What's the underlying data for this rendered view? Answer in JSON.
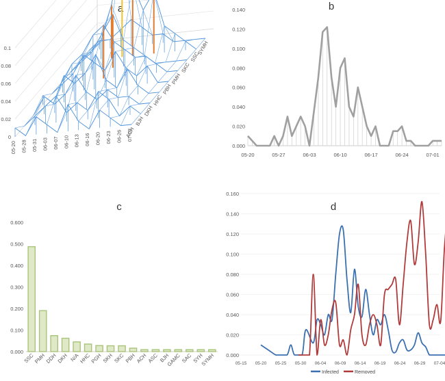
{
  "panels": {
    "a": {
      "label": "a"
    },
    "b": {
      "label": "b"
    },
    "c": {
      "label": "c"
    },
    "d": {
      "label": "d"
    }
  },
  "chart_data": [
    {
      "id": "a",
      "type": "surface3d",
      "title": "a",
      "x_ticks": [
        "05-20",
        "05-28",
        "05-31",
        "06-03",
        "06-07",
        "06-10",
        "06-13",
        "06-16",
        "06-20",
        "06-23",
        "06-26",
        "07-03"
      ],
      "depth_categories": [
        "ACH",
        "BJH",
        "DKH",
        "HHC",
        "PBH",
        "PMH",
        "SKC",
        "SSC",
        "SYMH"
      ],
      "z_ticks": [
        "0",
        "0.02",
        "0.04",
        "0.06",
        "0.08",
        "0.1"
      ],
      "zlim": [
        0,
        0.12
      ],
      "bands": [
        "0-0.02",
        "0.02-0.04",
        "0.04-0.06",
        "0.06-0.08",
        "0.08-0.1",
        "0.1-0.12"
      ],
      "band_colors": [
        "#4a90d9",
        "#4a90d9",
        "#4a90d9",
        "#e07a2e",
        "#e07a2e",
        "#f2c12e"
      ],
      "series": [
        {
          "name": "ACH",
          "values": [
            0.01,
            0,
            0.02,
            0.01,
            0,
            0.03,
            0.01,
            0,
            0.02,
            0.01,
            0,
            0
          ]
        },
        {
          "name": "BJH",
          "values": [
            0,
            0.01,
            0.02,
            0.03,
            0.01,
            0.02,
            0.01,
            0.03,
            0.02,
            0,
            0.01,
            0
          ]
        },
        {
          "name": "DKH",
          "values": [
            0,
            0.02,
            0.01,
            0.02,
            0.04,
            0.02,
            0.01,
            0.02,
            0.01,
            0.01,
            0,
            0
          ]
        },
        {
          "name": "HHC",
          "values": [
            0.01,
            0,
            0.03,
            0.02,
            0.03,
            0.05,
            0.02,
            0.01,
            0.03,
            0.01,
            0,
            0
          ]
        },
        {
          "name": "PBH",
          "values": [
            0,
            0.01,
            0.02,
            0.04,
            0.03,
            0.02,
            0.04,
            0.02,
            0.01,
            0.02,
            0,
            0
          ]
        },
        {
          "name": "PMH",
          "values": [
            0,
            0.02,
            0.03,
            0.05,
            0.06,
            0.04,
            0.03,
            0.02,
            0.02,
            0.01,
            0,
            0
          ]
        },
        {
          "name": "SKC",
          "values": [
            0,
            0.01,
            0.02,
            0.04,
            0.06,
            0.03,
            0.02,
            0.01,
            0,
            0,
            0,
            0
          ]
        },
        {
          "name": "SSC",
          "values": [
            0,
            0.01,
            0.02,
            0.06,
            0.12,
            0.08,
            0.05,
            0.07,
            0.03,
            0.02,
            0.01,
            0
          ]
        },
        {
          "name": "SYMH",
          "values": [
            0,
            0.01,
            0.01,
            0.02,
            0.03,
            0.02,
            0.01,
            0.01,
            0,
            0,
            0,
            0
          ]
        }
      ]
    },
    {
      "id": "b",
      "type": "area",
      "title": "b",
      "x_ticks": [
        "05-20",
        "05-27",
        "06-03",
        "06-10",
        "06-17",
        "06-24",
        "07-01"
      ],
      "y_ticks": [
        "0.000",
        "0.020",
        "0.040",
        "0.060",
        "0.080",
        "0.100",
        "0.120",
        "0.140"
      ],
      "ylim": [
        0,
        0.14
      ],
      "values": [
        0.01,
        0.005,
        0,
        0,
        0,
        0,
        0.01,
        0,
        0.01,
        0.03,
        0.01,
        0.02,
        0.03,
        0.02,
        0,
        0.035,
        0.07,
        0.117,
        0.122,
        0.07,
        0.04,
        0.08,
        0.09,
        0.04,
        0.03,
        0.06,
        0.04,
        0.02,
        0.01,
        0.02,
        0,
        0,
        0,
        0.015,
        0.015,
        0.02,
        0.005,
        0.005,
        0,
        0,
        0,
        0,
        0.005,
        0.005,
        0.005
      ]
    },
    {
      "id": "c",
      "type": "bar",
      "title": "c",
      "categories": [
        "SSC",
        "PMH",
        "DDH",
        "DKH",
        "N/A",
        "HHC",
        "PGH",
        "SKH",
        "SKC",
        "PBH",
        "ACH",
        "ASC",
        "BJH",
        "GAMC",
        "SAC",
        "SYH",
        "SYMH"
      ],
      "values": [
        0.487,
        0.19,
        0.074,
        0.062,
        0.045,
        0.035,
        0.028,
        0.027,
        0.027,
        0.016,
        0.009,
        0.009,
        0.009,
        0.009,
        0.009,
        0.009,
        0.009
      ],
      "y_ticks": [
        "0.000",
        "0.100",
        "0.200",
        "0.300",
        "0.400",
        "0.500",
        "0.600"
      ],
      "ylim": [
        0,
        0.6
      ]
    },
    {
      "id": "d",
      "type": "line",
      "title": "d",
      "x_ticks": [
        "05-15",
        "05-20",
        "05-25",
        "05-30",
        "06-04",
        "06-09",
        "06-14",
        "06-19",
        "06-24",
        "06-29",
        "07-04"
      ],
      "y_ticks": [
        "0.000",
        "0.020",
        "0.040",
        "0.060",
        "0.080",
        "0.100",
        "0.120",
        "0.140",
        "0.160"
      ],
      "ylim": [
        0,
        0.16
      ],
      "series": [
        {
          "name": "Infected",
          "color": "#3a6fb0",
          "values": [
            [
              5,
              0.01
            ],
            [
              7,
              0.005
            ],
            [
              9,
              0
            ],
            [
              10,
              0
            ],
            [
              12,
              0
            ],
            [
              13,
              0.01
            ],
            [
              14,
              0
            ],
            [
              16,
              0
            ],
            [
              17,
              0.025
            ],
            [
              19,
              0.012
            ],
            [
              20,
              0.035
            ],
            [
              21,
              0.03
            ],
            [
              22,
              0.02
            ],
            [
              23,
              0.04
            ],
            [
              24,
              0.035
            ],
            [
              25,
              0.08
            ],
            [
              26,
              0.12
            ],
            [
              27,
              0.124
            ],
            [
              28,
              0.075
            ],
            [
              29,
              0.042
            ],
            [
              30,
              0.085
            ],
            [
              31,
              0.048
            ],
            [
              32,
              0.038
            ],
            [
              33,
              0.065
            ],
            [
              34,
              0.04
            ],
            [
              35,
              0.02
            ],
            [
              36,
              0.035
            ],
            [
              37,
              0.03
            ],
            [
              38,
              0.04
            ],
            [
              39,
              0.025
            ],
            [
              40,
              0.005
            ],
            [
              41,
              0.003
            ],
            [
              42,
              0.012
            ],
            [
              43,
              0.015
            ],
            [
              44,
              0.005
            ],
            [
              45,
              0.005
            ],
            [
              46,
              0.01
            ],
            [
              47,
              0.022
            ],
            [
              48,
              0.012
            ],
            [
              49,
              0.008
            ],
            [
              50,
              0
            ],
            [
              51,
              0
            ],
            [
              52,
              0
            ],
            [
              53,
              0
            ],
            [
              54,
              0
            ],
            [
              55,
              0
            ],
            [
              56,
              0
            ],
            [
              57,
              0.005
            ],
            [
              58,
              0.005
            ],
            [
              59,
              0.005
            ],
            [
              60,
              0.005
            ]
          ]
        },
        {
          "name": "Removed",
          "color": "#b03a3a",
          "values": [
            [
              15,
              0
            ],
            [
              17,
              0
            ],
            [
              18,
              0
            ],
            [
              19,
              0.08
            ],
            [
              20,
              0
            ],
            [
              21,
              0.035
            ],
            [
              22,
              0.01
            ],
            [
              23,
              0.02
            ],
            [
              24,
              0.045
            ],
            [
              25,
              0.052
            ],
            [
              26,
              0.01
            ],
            [
              27,
              0.015
            ],
            [
              28,
              0
            ],
            [
              29,
              0.025
            ],
            [
              30,
              0.04
            ],
            [
              31,
              0.07
            ],
            [
              32,
              0.02
            ],
            [
              33,
              0.01
            ],
            [
              34,
              0.03
            ],
            [
              35,
              0.04
            ],
            [
              36,
              0.03
            ],
            [
              37,
              0.01
            ],
            [
              38,
              0.06
            ],
            [
              39,
              0.065
            ],
            [
              40,
              0.07
            ],
            [
              41,
              0.075
            ],
            [
              42,
              0.03
            ],
            [
              43,
              0.07
            ],
            [
              44,
              0.112
            ],
            [
              45,
              0.133
            ],
            [
              46,
              0.09
            ],
            [
              47,
              0.112
            ],
            [
              48,
              0.152
            ],
            [
              49,
              0.1
            ],
            [
              50,
              0.03
            ],
            [
              51,
              0.035
            ],
            [
              52,
              0.05
            ],
            [
              53,
              0.033
            ],
            [
              54,
              0.105
            ],
            [
              55,
              0.14
            ],
            [
              56,
              0.12
            ],
            [
              57,
              0.045
            ],
            [
              58,
              0.118
            ]
          ]
        }
      ],
      "x_day_range": [
        0,
        50
      ]
    }
  ]
}
